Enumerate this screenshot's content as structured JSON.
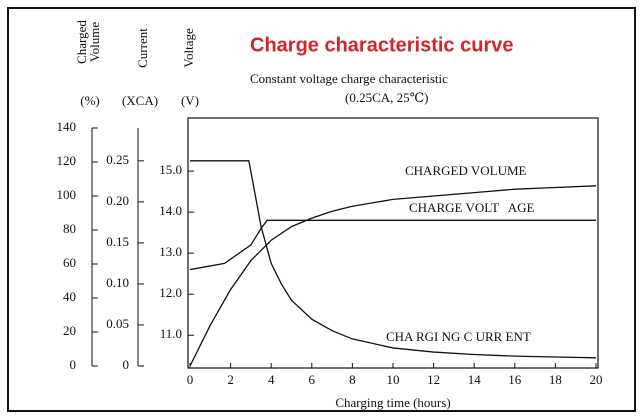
{
  "chart_data": {
    "type": "line",
    "title": "Charge characteristic curve",
    "subtitle": [
      "Constant voltage charge characteristic",
      "(0.25CA, 25℃)"
    ],
    "xlabel": "Charging time (hours)",
    "xlim": [
      0,
      20
    ],
    "xticks": [
      0,
      2,
      4,
      6,
      8,
      10,
      12,
      14,
      16,
      18,
      20
    ],
    "ylabel_lines": [
      "Charged",
      "Volume"
    ],
    "yunit": "(%)",
    "ylim": [
      0,
      140
    ],
    "yticks": [
      0,
      20,
      40,
      60,
      80,
      100,
      120,
      140
    ],
    "y2label": "Current",
    "y2unit": "(XCA)",
    "y2lim": [
      0,
      0.29
    ],
    "y2ticks": [
      0,
      0.05,
      {
        "value": 0.1,
        "label": "0.10"
      },
      0.15,
      {
        "value": 0.2,
        "label": "0.20"
      },
      0.25
    ],
    "y3label": "Voltage",
    "y3unit": "(V)",
    "y3lim": [
      10.25,
      16.05
    ],
    "y3ticks": [
      {
        "value": 11,
        "label": "11.0"
      },
      {
        "value": 12,
        "label": "12.0"
      },
      {
        "value": 13,
        "label": "13.0"
      },
      {
        "value": 14,
        "label": "14.0"
      },
      {
        "value": 15,
        "label": "15.0"
      }
    ],
    "grid": false,
    "series": [
      {
        "name": "CHARGED VOLUME",
        "color": "#111",
        "axis": "y",
        "x": [
          0,
          1,
          2,
          3,
          4,
          5,
          6,
          7,
          8,
          10,
          12,
          14,
          16,
          18,
          20
        ],
        "values": [
          0,
          24,
          45,
          62,
          74,
          82,
          87,
          91,
          94,
          98,
          100,
          102,
          104,
          105,
          106
        ]
      },
      {
        "name": "CHARGE VOLT   AGE",
        "color": "#111",
        "axis": "y3",
        "x": [
          0,
          1.7,
          3,
          3.5,
          3.8,
          20
        ],
        "values": [
          12.6,
          12.75,
          13.2,
          13.6,
          13.8,
          13.8
        ]
      },
      {
        "name": "CHA RGI NG C URR ENT",
        "color": "#111",
        "axis": "y2",
        "x": [
          0,
          2.9,
          3.2,
          3.5,
          4,
          4.5,
          5,
          6,
          7,
          8,
          10,
          12,
          14,
          16,
          18,
          20
        ],
        "values": [
          0.25,
          0.25,
          0.21,
          0.17,
          0.125,
          0.1,
          0.08,
          0.057,
          0.043,
          0.033,
          0.022,
          0.017,
          0.014,
          0.012,
          0.011,
          0.01
        ]
      }
    ]
  }
}
